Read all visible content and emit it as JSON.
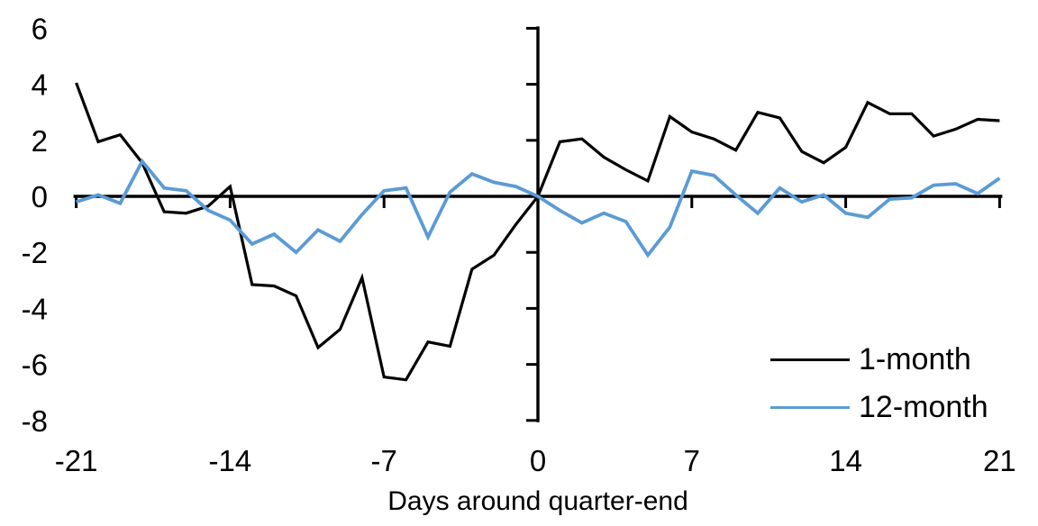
{
  "chart_data": {
    "type": "line",
    "title": "",
    "xlabel": "Days around quarter-end",
    "ylabel": "",
    "grid": false,
    "legend_position": "bottom-right",
    "x_axis": {
      "ticks": [
        -21,
        -14,
        -7,
        0,
        7,
        14,
        21
      ],
      "range": [
        -21,
        21
      ]
    },
    "y_axis": {
      "ticks": [
        6,
        4,
        2,
        0,
        -2,
        -4,
        -6,
        -8
      ],
      "range": [
        -8,
        6
      ]
    },
    "x": [
      -21,
      -20,
      -19,
      -18,
      -17,
      -16,
      -15,
      -14,
      -13,
      -12,
      -11,
      -10,
      -9,
      -8,
      -7,
      -6,
      -5,
      -4,
      -3,
      -2,
      -1,
      0,
      1,
      2,
      3,
      4,
      5,
      6,
      7,
      8,
      9,
      10,
      11,
      12,
      13,
      14,
      15,
      16,
      17,
      18,
      19,
      20,
      21
    ],
    "series": [
      {
        "name": "1-month",
        "color": "#000000",
        "values": [
          4.05,
          1.95,
          2.2,
          1.2,
          -0.55,
          -0.6,
          -0.35,
          0.35,
          -3.15,
          -3.2,
          -3.55,
          -5.4,
          -4.75,
          -2.9,
          -6.45,
          -6.55,
          -5.2,
          -5.35,
          -2.6,
          -2.1,
          -1.0,
          0,
          1.95,
          2.05,
          1.4,
          0.95,
          0.55,
          2.85,
          2.3,
          2.05,
          1.65,
          3.0,
          2.8,
          1.6,
          1.2,
          1.75,
          3.35,
          2.95,
          2.95,
          2.15,
          2.4,
          2.75,
          2.7
        ]
      },
      {
        "name": "12-month",
        "color": "#5B9BD5",
        "values": [
          -0.2,
          0.05,
          -0.25,
          1.25,
          0.3,
          0.2,
          -0.5,
          -0.85,
          -1.7,
          -1.35,
          -2.0,
          -1.2,
          -1.6,
          -0.65,
          0.2,
          0.3,
          -1.45,
          0.15,
          0.8,
          0.5,
          0.35,
          0,
          -0.5,
          -0.95,
          -0.6,
          -0.9,
          -2.1,
          -1.1,
          0.9,
          0.75,
          0.05,
          -0.6,
          0.3,
          -0.2,
          0.05,
          -0.6,
          -0.75,
          -0.1,
          -0.05,
          0.4,
          0.45,
          0.1,
          0.65
        ]
      }
    ]
  }
}
